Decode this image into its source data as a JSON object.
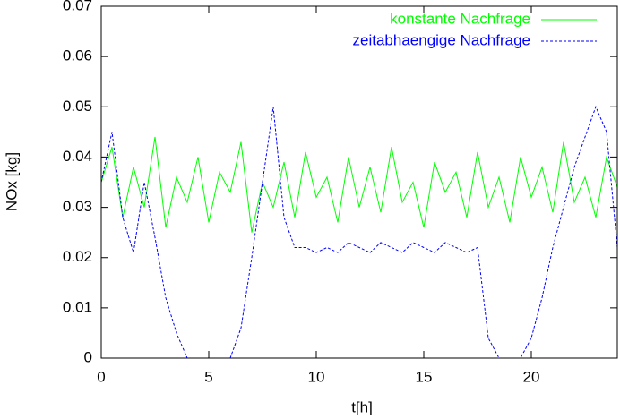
{
  "chart_data": {
    "type": "line",
    "x_label": "t[h]",
    "y_label": "NOx [kg]",
    "x": [
      0,
      0.5,
      1,
      1.5,
      2,
      2.5,
      3,
      3.5,
      4,
      4.5,
      5,
      5.5,
      6,
      6.5,
      7,
      7.5,
      8,
      8.5,
      9,
      9.5,
      10,
      10.5,
      11,
      11.5,
      12,
      12.5,
      13,
      13.5,
      14,
      14.5,
      15,
      15.5,
      16,
      16.5,
      17,
      17.5,
      18,
      18.5,
      19,
      19.5,
      20,
      20.5,
      21,
      21.5,
      22,
      22.5,
      23,
      23.5,
      24
    ],
    "series": [
      {
        "name": "konstante Nachfrage",
        "color": "#00ff00",
        "dashed": false,
        "values": [
          0.035,
          0.042,
          0.028,
          0.038,
          0.03,
          0.044,
          0.026,
          0.036,
          0.031,
          0.04,
          0.027,
          0.037,
          0.033,
          0.043,
          0.025,
          0.035,
          0.03,
          0.039,
          0.028,
          0.041,
          0.032,
          0.036,
          0.027,
          0.04,
          0.03,
          0.038,
          0.029,
          0.042,
          0.031,
          0.035,
          0.026,
          0.039,
          0.033,
          0.037,
          0.028,
          0.041,
          0.03,
          0.036,
          0.027,
          0.04,
          0.032,
          0.038,
          0.029,
          0.043,
          0.031,
          0.036,
          0.028,
          0.04,
          0.034
        ]
      },
      {
        "name": "zeitabhaengige Nachfrage",
        "color": "#0000ff",
        "dashed": true,
        "values": [
          0.035,
          0.045,
          0.028,
          0.021,
          0.035,
          0.024,
          0.012,
          0.005,
          0,
          0,
          0,
          0,
          0,
          0.006,
          0.02,
          0.035,
          0.05,
          0.028,
          0.022,
          0.022,
          0.021,
          0.022,
          0.021,
          0.023,
          0.022,
          0.021,
          0.023,
          0.022,
          0.021,
          0.023,
          0.022,
          0.021,
          0.023,
          0.022,
          0.021,
          0.022,
          0.004,
          0,
          0,
          0,
          0.004,
          0.012,
          0.022,
          0.03,
          0.038,
          0.044,
          0.05,
          0.045,
          0.022
        ]
      }
    ],
    "xlim": [
      0,
      24
    ],
    "ylim": [
      0,
      0.07
    ],
    "xticks": [
      0,
      5,
      10,
      15,
      20
    ],
    "yticks": [
      0,
      0.01,
      0.02,
      0.03,
      0.04,
      0.05,
      0.06,
      0.07
    ],
    "legend": "top-right"
  }
}
